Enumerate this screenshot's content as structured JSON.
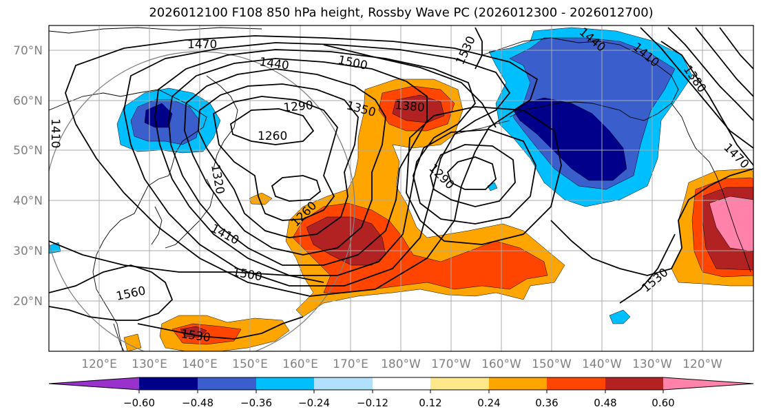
{
  "title": "2026012100 F108 850 hPa height, Rossby Wave PC (2026012300 - 2026012700)",
  "lat_labels": [
    "70°N",
    "60°N",
    "50°N",
    "40°N",
    "30°N",
    "20°N"
  ],
  "lon_labels": [
    "120°E",
    "130°E",
    "140°E",
    "150°E",
    "160°E",
    "170°E",
    "180°W",
    "170°W",
    "160°W",
    "150°W",
    "140°W",
    "130°W",
    "120°W"
  ],
  "colorbar": {
    "ticks": [
      "−0.60",
      "−0.48",
      "−0.36",
      "−0.24",
      "−0.12",
      "0.12",
      "0.24",
      "0.36",
      "0.48",
      "0.60"
    ],
    "colors": [
      "#9932cc",
      "#00008b",
      "#3a5fcd",
      "#00bfff",
      "#b0e0fa",
      "#ffffff",
      "#ffe88a",
      "#ffa500",
      "#ff4500",
      "#b22222",
      "#ff82ab"
    ]
  },
  "contour_labels": [
    "1470",
    "1440",
    "1500",
    "1530",
    "1290",
    "1350",
    "1380",
    "1260",
    "1320",
    "1290",
    "1260",
    "1410",
    "1500",
    "1560",
    "1530",
    "1530",
    "1440",
    "1410",
    "1380",
    "1470",
    "1410"
  ],
  "shading_colors": {
    "pos_light": "#ffa500",
    "pos_mid": "#ff4500",
    "pos_strong": "#b22222",
    "pos_max": "#ff82ab",
    "neg_light": "#00bfff",
    "neg_mid": "#3a5fcd",
    "neg_strong": "#00008b"
  }
}
